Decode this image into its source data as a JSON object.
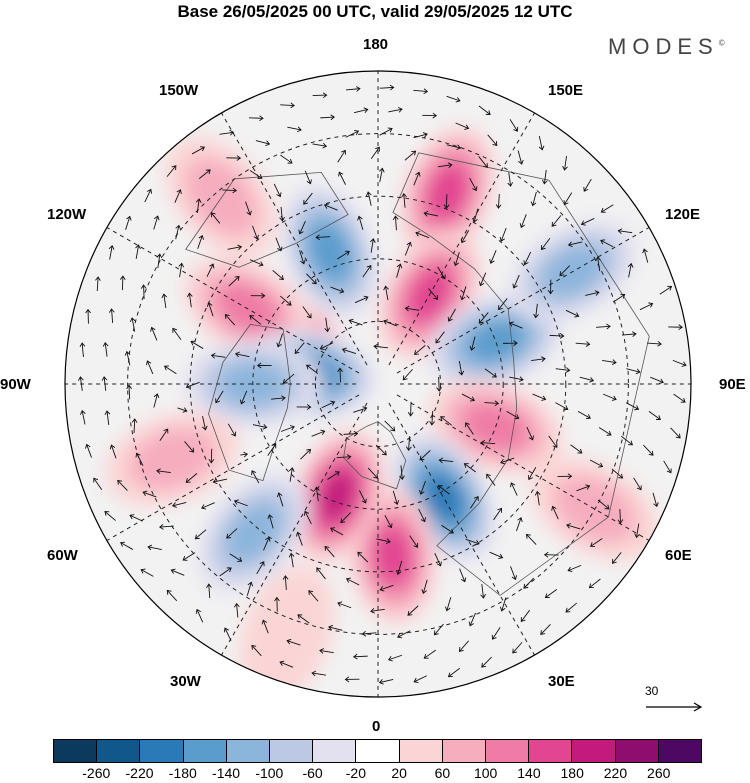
{
  "header": {
    "title": "Base 26/05/2025 00 UTC, valid 29/05/2025 12 UTC",
    "brand": "MODES",
    "brand_mark": "©"
  },
  "map": {
    "projection": "north-polar-stereographic",
    "longitude_labels": {
      "top": "180",
      "bottom": "0",
      "left": "90W",
      "right": "90E",
      "upper_left_1": "150W",
      "upper_left_2": "120W",
      "lower_left_1": "60W",
      "lower_left_2": "30W",
      "upper_right_1": "150E",
      "upper_right_2": "120E",
      "lower_right_1": "60E",
      "lower_right_2": "30E"
    },
    "anomaly_centers": [
      {
        "lon": 245,
        "r": 0.33,
        "level": 220
      },
      {
        "lon": 240,
        "r": 0.48,
        "level": 100
      },
      {
        "lon": 262,
        "r": 0.23,
        "level": -180
      },
      {
        "lon": 270,
        "r": 0.4,
        "level": -100
      },
      {
        "lon": 200,
        "r": 0.45,
        "level": -140
      },
      {
        "lon": 160,
        "r": 0.65,
        "level": 140
      },
      {
        "lon": 150,
        "r": 0.33,
        "level": 140
      },
      {
        "lon": 110,
        "r": 0.4,
        "level": -140
      },
      {
        "lon": 120,
        "r": 0.72,
        "level": -100
      },
      {
        "lon": 70,
        "r": 0.4,
        "level": 100
      },
      {
        "lon": 30,
        "r": 0.42,
        "level": -180
      },
      {
        "lon": 5,
        "r": 0.55,
        "level": 140
      },
      {
        "lon": 340,
        "r": 0.38,
        "level": 180
      },
      {
        "lon": 320,
        "r": 0.62,
        "level": -100
      },
      {
        "lon": 290,
        "r": 0.7,
        "level": 60
      },
      {
        "lon": 220,
        "r": 0.78,
        "level": 60
      },
      {
        "lon": 60,
        "r": 0.8,
        "level": 60
      },
      {
        "lon": 340,
        "r": 0.85,
        "level": 20
      }
    ]
  },
  "reference_vector": {
    "label": "30"
  },
  "colorbar": {
    "ticks": [
      "-260",
      "-220",
      "-180",
      "-140",
      "-100",
      "-60",
      "-20",
      "20",
      "60",
      "100",
      "140",
      "180",
      "220",
      "260"
    ],
    "colors": [
      "#0b3a5e",
      "#10588c",
      "#2b7ab8",
      "#5a9ccc",
      "#8cb5dc",
      "#bcc9e4",
      "#e3e1f0",
      "#ffffff",
      "#fbd5d5",
      "#f6adbe",
      "#ef7ba6",
      "#e24592",
      "#c31a7d",
      "#8f0d6f",
      "#4f0764"
    ]
  }
}
